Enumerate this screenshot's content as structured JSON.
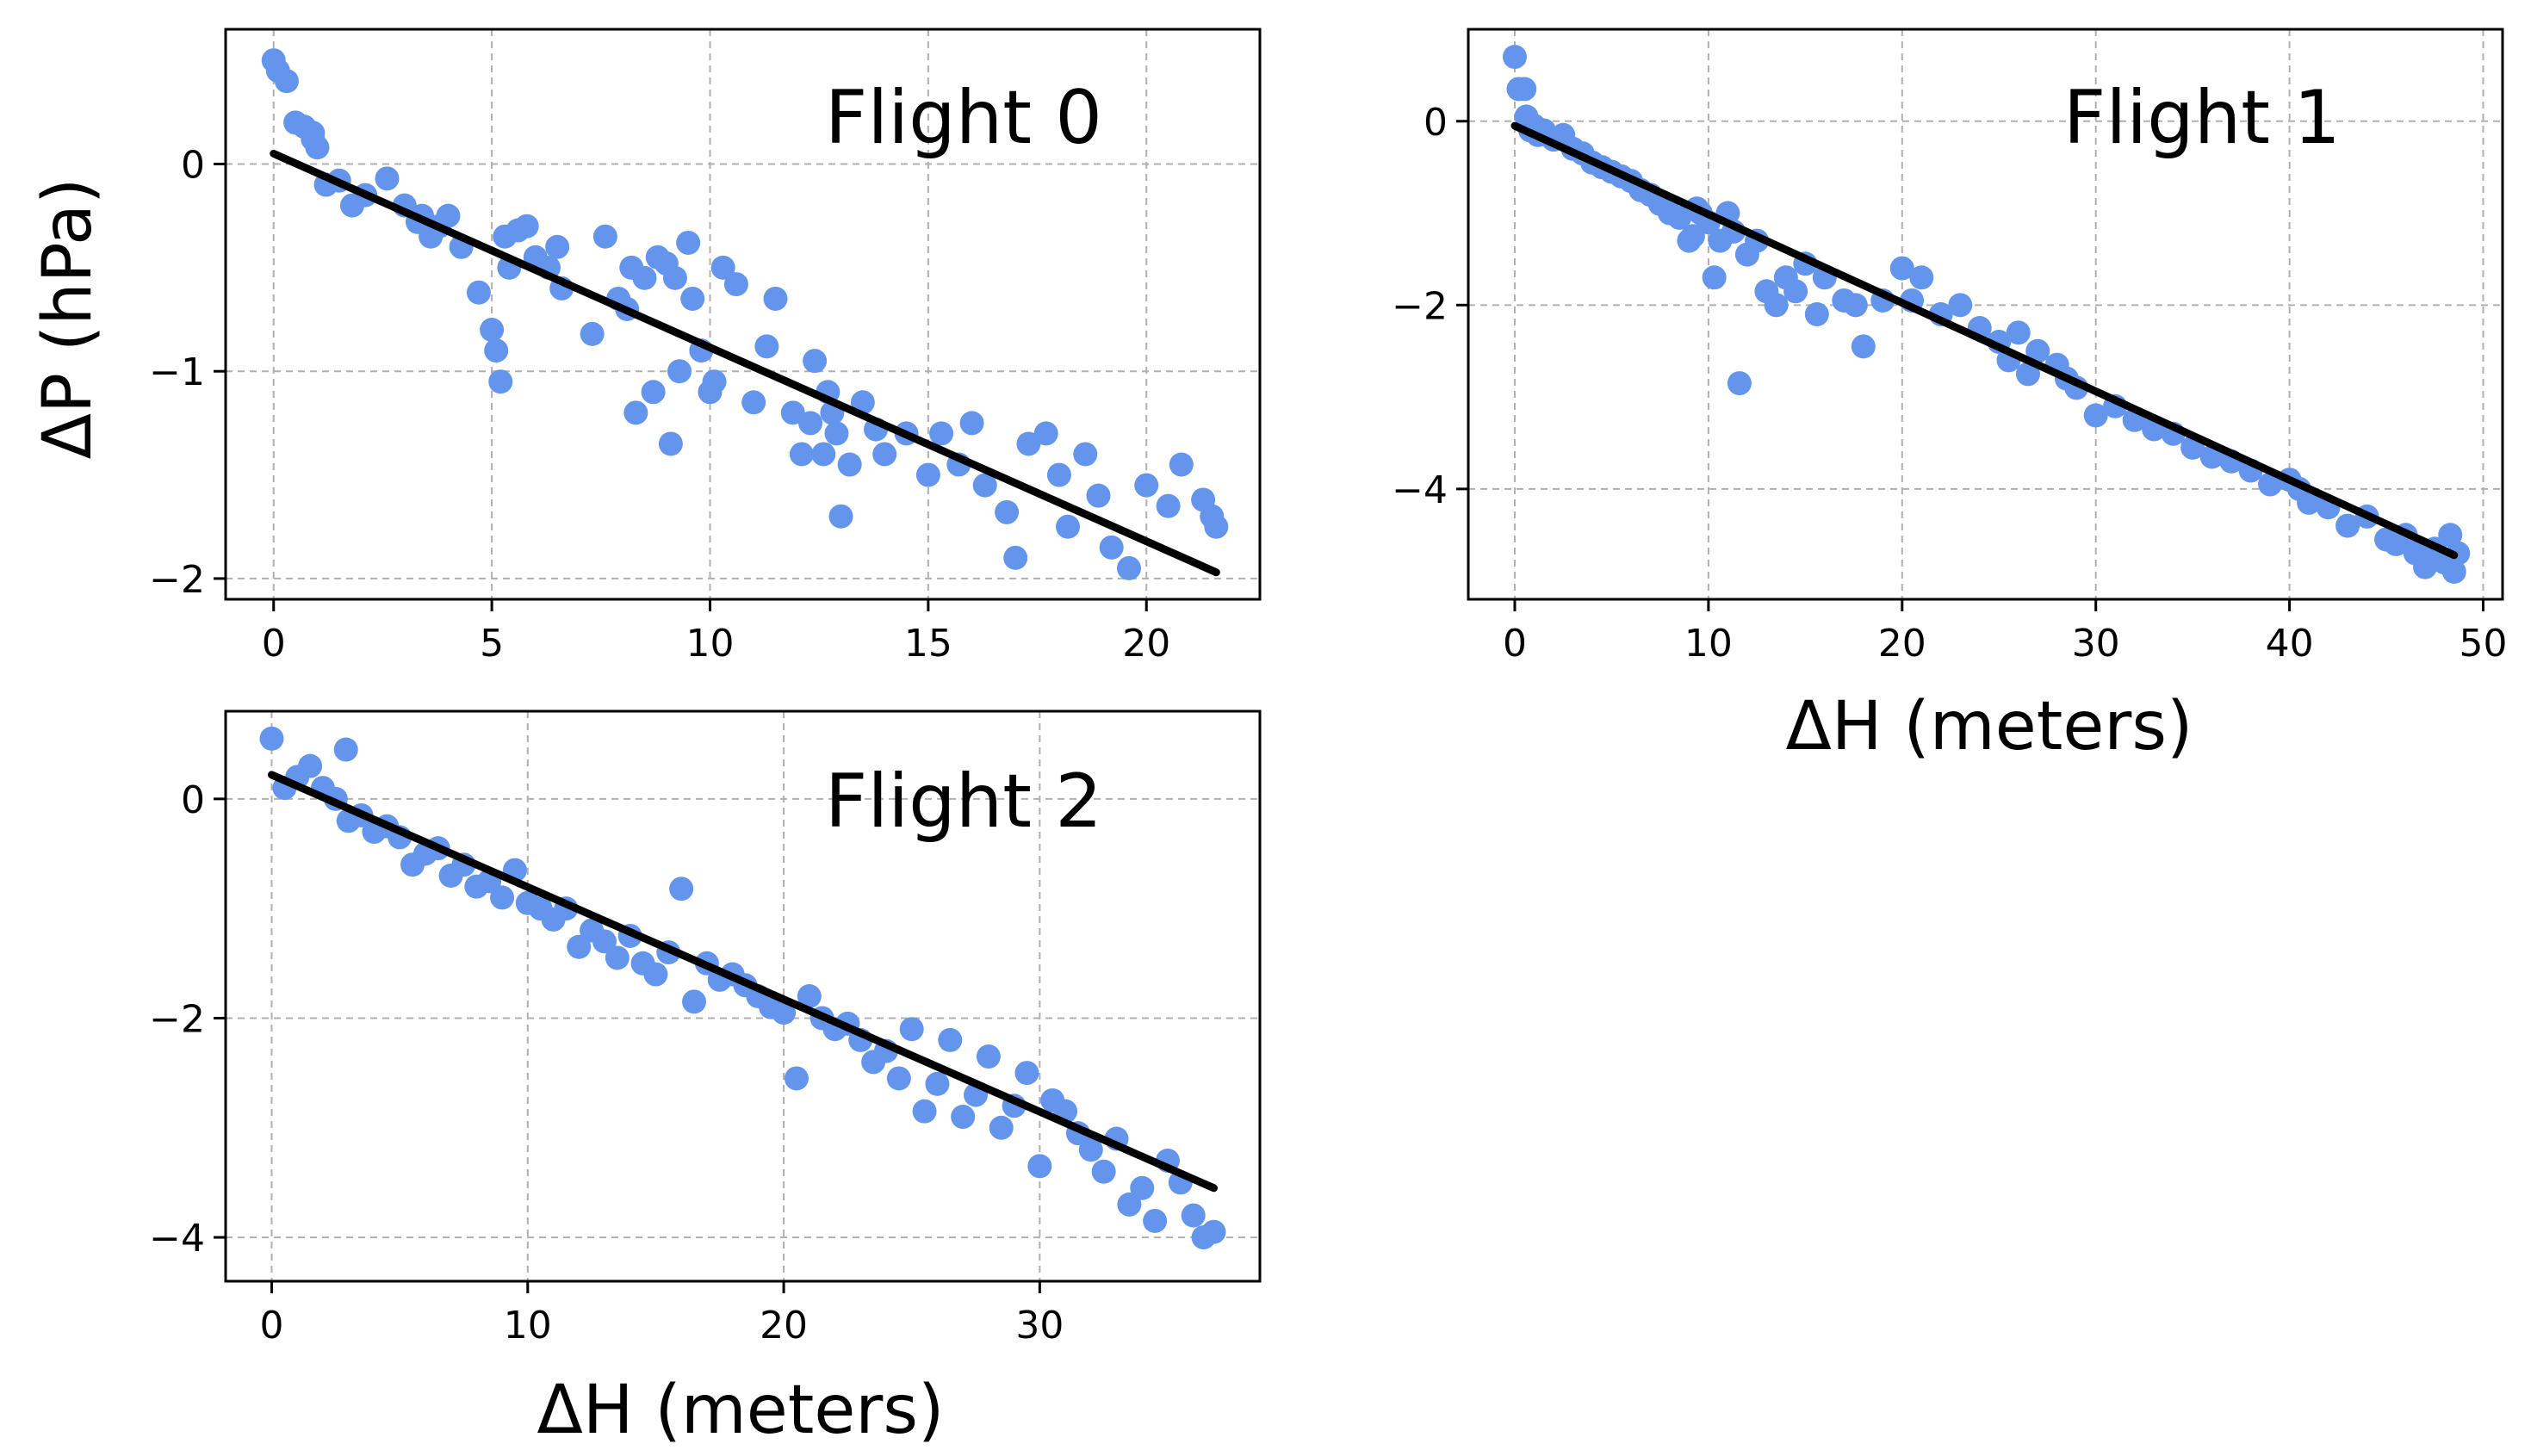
{
  "figure": {
    "colors": {
      "points": "#6495ED",
      "fit": "#000000",
      "grid": "#b0b0b0",
      "frame": "#000000"
    }
  },
  "chart_data": [
    {
      "type": "scatter",
      "title": "Flight 0",
      "xlabel": "",
      "ylabel": "ΔP (hPa)",
      "xlim": [
        -1.1,
        22.6
      ],
      "ylim": [
        -2.1,
        0.65
      ],
      "xticks": [
        0,
        5,
        10,
        15,
        20
      ],
      "xtick_labels": [
        "0",
        "5",
        "10",
        "15",
        "20"
      ],
      "yticks": [
        0,
        -1,
        -2
      ],
      "ytick_labels": [
        "0",
        "−1",
        "−2"
      ],
      "grid": true,
      "fit_line": {
        "x": [
          0,
          21.6
        ],
        "y": [
          0.05,
          -1.97
        ]
      },
      "x": [
        0.0,
        0.1,
        0.3,
        0.5,
        0.7,
        0.9,
        0.9,
        1.0,
        1.2,
        1.5,
        1.8,
        2.1,
        2.6,
        3.0,
        3.3,
        3.4,
        3.6,
        3.8,
        4.0,
        4.3,
        4.7,
        5.0,
        5.1,
        5.2,
        5.3,
        5.4,
        5.6,
        5.8,
        6.0,
        6.3,
        6.5,
        6.6,
        7.3,
        7.6,
        7.9,
        8.1,
        8.2,
        8.3,
        8.5,
        8.7,
        8.8,
        9.0,
        9.1,
        9.2,
        9.3,
        9.5,
        9.6,
        9.8,
        10.0,
        10.1,
        10.3,
        10.6,
        11.0,
        11.3,
        11.5,
        11.9,
        12.1,
        12.3,
        12.4,
        12.6,
        12.7,
        12.8,
        12.9,
        13.0,
        13.2,
        13.5,
        13.8,
        14.0,
        14.5,
        15.0,
        15.3,
        15.7,
        16.0,
        16.3,
        16.8,
        17.0,
        17.3,
        17.7,
        18.0,
        18.2,
        18.6,
        18.9,
        19.2,
        19.6,
        20.0,
        20.5,
        20.8,
        21.3,
        21.5,
        21.6
      ],
      "y": [
        0.5,
        0.45,
        0.4,
        0.2,
        0.18,
        0.15,
        0.12,
        0.08,
        -0.1,
        -0.08,
        -0.2,
        -0.15,
        -0.07,
        -0.2,
        -0.28,
        -0.25,
        -0.35,
        -0.3,
        -0.25,
        -0.4,
        -0.62,
        -0.8,
        -0.9,
        -1.05,
        -0.35,
        -0.5,
        -0.32,
        -0.3,
        -0.45,
        -0.5,
        -0.4,
        -0.6,
        -0.82,
        -0.35,
        -0.65,
        -0.7,
        -0.5,
        -1.2,
        -0.55,
        -1.1,
        -0.45,
        -0.48,
        -1.35,
        -0.55,
        -1.0,
        -0.38,
        -0.65,
        -0.9,
        -1.1,
        -1.05,
        -0.5,
        -0.58,
        -1.15,
        -0.88,
        -0.65,
        -1.2,
        -1.4,
        -1.25,
        -0.95,
        -1.4,
        -1.1,
        -1.2,
        -1.3,
        -1.7,
        -1.45,
        -1.15,
        -1.28,
        -1.4,
        -1.3,
        -1.5,
        -1.3,
        -1.45,
        -1.25,
        -1.55,
        -1.68,
        -1.9,
        -1.35,
        -1.3,
        -1.5,
        -1.75,
        -1.4,
        -1.6,
        -1.85,
        -1.95,
        -1.55,
        -1.65,
        -1.45,
        -1.62,
        -1.7,
        -1.75
      ]
    },
    {
      "type": "scatter",
      "title": "Flight 1",
      "xlabel": "ΔH (meters)",
      "ylabel": "",
      "xlim": [
        -2.4,
        51.0
      ],
      "ylim": [
        -5.2,
        1.0
      ],
      "xticks": [
        0,
        10,
        20,
        30,
        40,
        50
      ],
      "xtick_labels": [
        "0",
        "10",
        "20",
        "30",
        "40",
        "50"
      ],
      "yticks": [
        0,
        -2,
        -4
      ],
      "ytick_labels": [
        "0",
        "−2",
        "−4"
      ],
      "grid": true,
      "fit_line": {
        "x": [
          0,
          48.5
        ],
        "y": [
          -0.05,
          -4.72
        ]
      },
      "x": [
        0.0,
        0.2,
        0.5,
        0.6,
        0.8,
        1.0,
        1.2,
        1.5,
        2.0,
        2.5,
        3.0,
        3.5,
        4.0,
        4.5,
        5.0,
        5.5,
        6.0,
        6.5,
        7.0,
        7.5,
        8.0,
        8.5,
        9.0,
        9.2,
        9.4,
        9.6,
        10.0,
        10.3,
        10.6,
        11.0,
        11.3,
        11.6,
        12.0,
        12.5,
        13.0,
        13.5,
        14.0,
        14.5,
        15.0,
        15.6,
        16.0,
        17.0,
        17.6,
        18.0,
        19.0,
        20.0,
        20.5,
        21.0,
        22.0,
        23.0,
        24.0,
        25.0,
        25.5,
        26.0,
        26.5,
        27.0,
        28.0,
        28.5,
        29.0,
        30.0,
        31.0,
        32.0,
        33.0,
        34.0,
        35.0,
        36.0,
        37.0,
        38.0,
        39.0,
        40.0,
        40.5,
        41.0,
        42.0,
        43.0,
        44.0,
        45.0,
        45.5,
        46.0,
        46.5,
        47.0,
        47.5,
        48.0,
        48.3,
        48.5,
        48.7
      ],
      "y": [
        0.7,
        0.35,
        0.35,
        0.05,
        -0.1,
        -0.05,
        -0.15,
        -0.1,
        -0.2,
        -0.15,
        -0.3,
        -0.35,
        -0.45,
        -0.5,
        -0.55,
        -0.6,
        -0.65,
        -0.75,
        -0.8,
        -0.9,
        -1.0,
        -1.05,
        -1.3,
        -1.25,
        -0.95,
        -1.0,
        -1.1,
        -1.7,
        -1.3,
        -1.0,
        -1.2,
        -2.85,
        -1.45,
        -1.3,
        -1.85,
        -2.0,
        -1.7,
        -1.85,
        -1.55,
        -2.1,
        -1.7,
        -1.95,
        -2.0,
        -2.45,
        -1.95,
        -1.6,
        -1.95,
        -1.7,
        -2.1,
        -2.0,
        -2.25,
        -2.4,
        -2.6,
        -2.3,
        -2.75,
        -2.5,
        -2.65,
        -2.8,
        -2.9,
        -3.2,
        -3.1,
        -3.25,
        -3.35,
        -3.4,
        -3.55,
        -3.65,
        -3.7,
        -3.8,
        -3.95,
        -3.9,
        -4.0,
        -4.15,
        -4.2,
        -4.4,
        -4.3,
        -4.55,
        -4.6,
        -4.5,
        -4.7,
        -4.85,
        -4.65,
        -4.8,
        -4.5,
        -4.9,
        -4.7
      ]
    },
    {
      "type": "scatter",
      "title": "Flight 2",
      "xlabel": "ΔH (meters)",
      "ylabel": "",
      "xlim": [
        -1.8,
        38.6
      ],
      "ylim": [
        -4.4,
        0.8
      ],
      "xticks": [
        0,
        10,
        20,
        30
      ],
      "xtick_labels": [
        "0",
        "10",
        "20",
        "30"
      ],
      "yticks": [
        0,
        -2,
        -4
      ],
      "ytick_labels": [
        "0",
        "−2",
        "−4"
      ],
      "grid": true,
      "fit_line": {
        "x": [
          0,
          36.8
        ],
        "y": [
          0.22,
          -3.55
        ]
      },
      "x": [
        0.0,
        0.5,
        1.0,
        1.5,
        2.0,
        2.5,
        2.9,
        3.0,
        3.5,
        4.0,
        4.5,
        5.0,
        5.5,
        6.0,
        6.5,
        7.0,
        7.5,
        8.0,
        8.5,
        9.0,
        9.5,
        10.0,
        10.5,
        11.0,
        11.5,
        12.0,
        12.5,
        13.0,
        13.5,
        14.0,
        14.5,
        15.0,
        15.5,
        16.0,
        16.5,
        17.0,
        17.5,
        18.0,
        18.5,
        19.0,
        19.5,
        20.0,
        20.5,
        21.0,
        21.5,
        22.0,
        22.5,
        23.0,
        23.5,
        24.0,
        24.5,
        25.0,
        25.5,
        26.0,
        26.5,
        27.0,
        27.5,
        28.0,
        28.5,
        29.0,
        29.5,
        30.0,
        30.5,
        31.0,
        31.5,
        32.0,
        32.5,
        33.0,
        33.5,
        34.0,
        34.5,
        35.0,
        35.5,
        36.0,
        36.4,
        36.8
      ],
      "y": [
        0.55,
        0.1,
        0.2,
        0.3,
        0.1,
        0.0,
        0.45,
        -0.2,
        -0.15,
        -0.3,
        -0.25,
        -0.35,
        -0.6,
        -0.5,
        -0.45,
        -0.7,
        -0.6,
        -0.8,
        -0.75,
        -0.9,
        -0.65,
        -0.95,
        -1.0,
        -1.1,
        -1.0,
        -1.35,
        -1.2,
        -1.3,
        -1.45,
        -1.25,
        -1.5,
        -1.6,
        -1.4,
        -0.82,
        -1.85,
        -1.5,
        -1.65,
        -1.6,
        -1.7,
        -1.8,
        -1.9,
        -1.95,
        -2.55,
        -1.8,
        -2.0,
        -2.1,
        -2.05,
        -2.2,
        -2.4,
        -2.3,
        -2.55,
        -2.1,
        -2.85,
        -2.6,
        -2.2,
        -2.9,
        -2.7,
        -2.35,
        -3.0,
        -2.8,
        -2.5,
        -3.35,
        -2.75,
        -2.85,
        -3.05,
        -3.2,
        -3.4,
        -3.1,
        -3.7,
        -3.55,
        -3.85,
        -3.3,
        -3.5,
        -3.8,
        -4.0,
        -3.95
      ]
    }
  ]
}
